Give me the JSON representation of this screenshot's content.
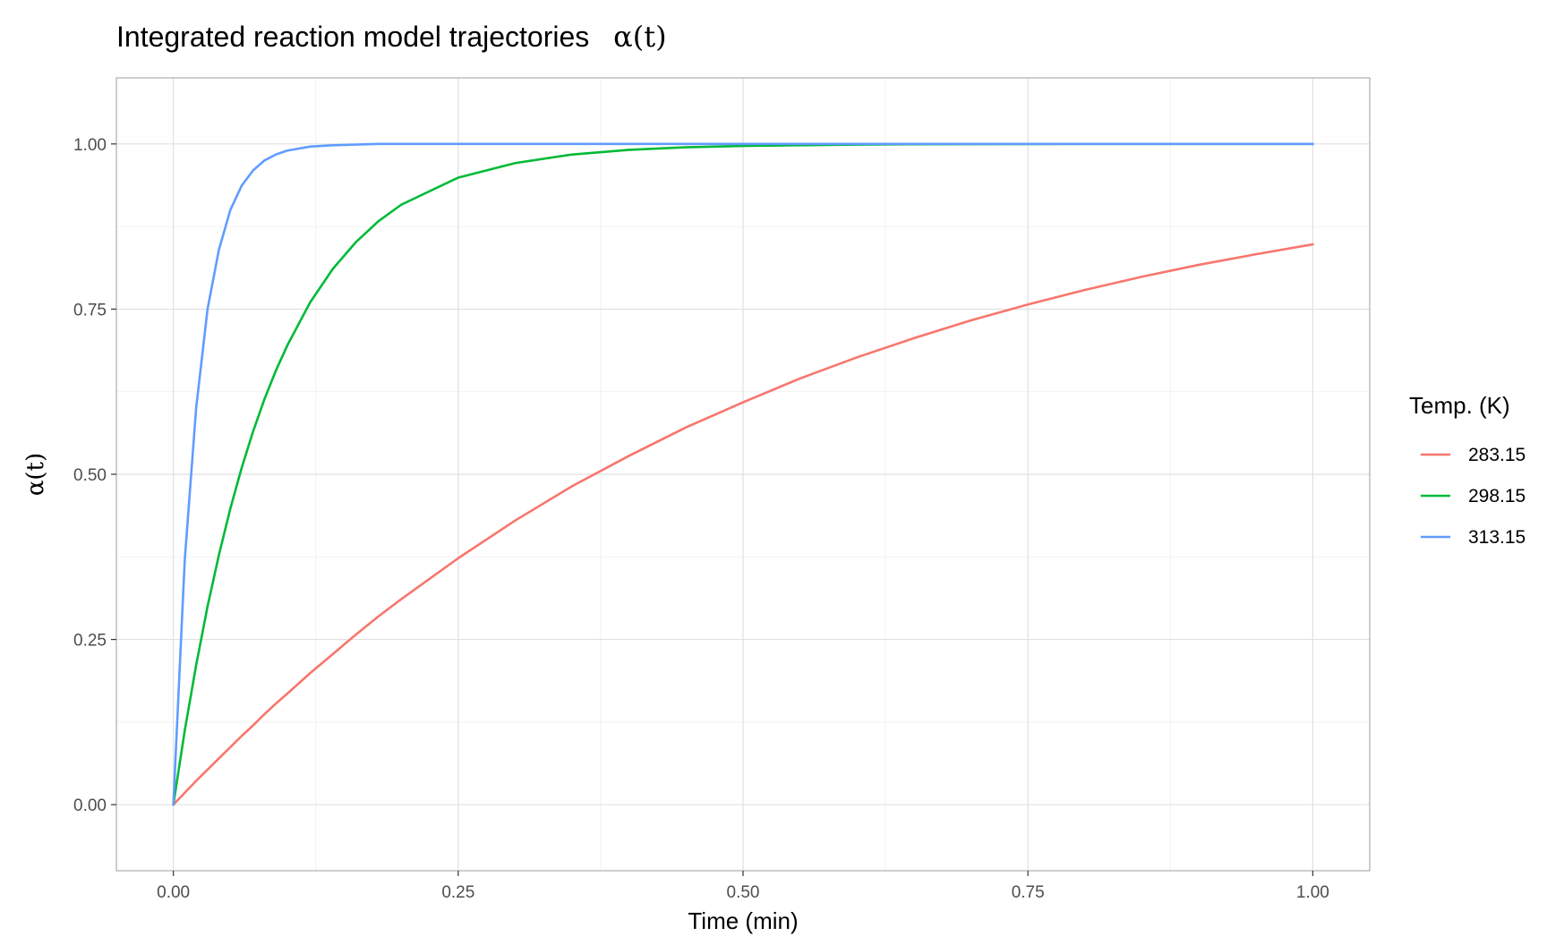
{
  "chart_data": {
    "type": "line",
    "title": "Integrated reaction model trajectories",
    "title_math": "α(t)",
    "xlabel": "Time (min)",
    "ylabel": "α(t)",
    "xlim": [
      -0.05,
      1.05
    ],
    "ylim": [
      -0.1,
      1.1
    ],
    "x_ticks": [
      0.0,
      0.25,
      0.5,
      0.75,
      1.0
    ],
    "x_tick_labels": [
      "0.00",
      "0.25",
      "0.50",
      "0.75",
      "1.00"
    ],
    "y_ticks": [
      0.0,
      0.25,
      0.5,
      0.75,
      1.0
    ],
    "y_tick_labels": [
      "0.00",
      "0.25",
      "0.50",
      "0.75",
      "1.00"
    ],
    "grid": true,
    "legend": {
      "title": "Temp. (K)",
      "placement": "right"
    },
    "x": [
      0.0,
      0.01,
      0.02,
      0.03,
      0.04,
      0.05,
      0.06,
      0.07,
      0.08,
      0.09,
      0.1,
      0.12,
      0.14,
      0.16,
      0.18,
      0.2,
      0.25,
      0.3,
      0.35,
      0.4,
      0.45,
      0.5,
      0.55,
      0.6,
      0.65,
      0.7,
      0.75,
      0.8,
      0.85,
      0.9,
      0.95,
      1.0
    ],
    "series": [
      {
        "name": "283.15",
        "color": "#F8766D",
        "values": [
          0.0,
          0.018,
          0.036,
          0.053,
          0.07,
          0.087,
          0.104,
          0.12,
          0.137,
          0.153,
          0.168,
          0.199,
          0.228,
          0.257,
          0.285,
          0.311,
          0.373,
          0.43,
          0.482,
          0.528,
          0.571,
          0.609,
          0.645,
          0.677,
          0.706,
          0.733,
          0.757,
          0.779,
          0.799,
          0.817,
          0.833,
          0.848
        ]
      },
      {
        "name": "298.15",
        "color": "#00BA38",
        "values": [
          0.0,
          0.112,
          0.211,
          0.3,
          0.378,
          0.448,
          0.51,
          0.565,
          0.614,
          0.657,
          0.695,
          0.76,
          0.811,
          0.851,
          0.883,
          0.908,
          0.949,
          0.971,
          0.984,
          0.991,
          0.995,
          0.997,
          0.998,
          0.999,
          0.9995,
          0.9997,
          0.9999,
          1.0,
          1.0,
          1.0,
          1.0,
          1.0
        ]
      },
      {
        "name": "313.15",
        "color": "#619CFF",
        "values": [
          0.0,
          0.37,
          0.6,
          0.75,
          0.84,
          0.9,
          0.937,
          0.96,
          0.975,
          0.984,
          0.99,
          0.996,
          0.998,
          0.999,
          1.0,
          1.0,
          1.0,
          1.0,
          1.0,
          1.0,
          1.0,
          1.0,
          1.0,
          1.0,
          1.0,
          1.0,
          1.0,
          1.0,
          1.0,
          1.0,
          1.0,
          1.0
        ]
      }
    ]
  }
}
